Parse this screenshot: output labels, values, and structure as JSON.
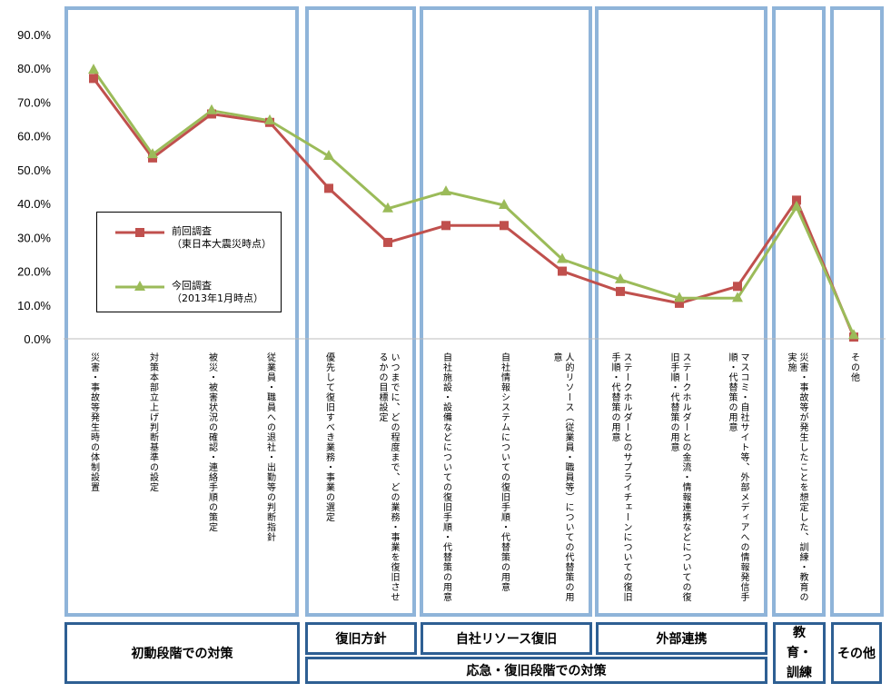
{
  "chart_data": {
    "type": "line",
    "ylim": [
      0,
      90
    ],
    "yticks": [
      "0.0%",
      "10.0%",
      "20.0%",
      "30.0%",
      "40.0%",
      "50.0%",
      "60.0%",
      "70.0%",
      "80.0%",
      "90.0%"
    ],
    "categories": [
      "災害・事故等発生時の体制設置",
      "対策本部立上げ判断基準の設定",
      "被災・被害状況の確認・連絡手順の策定",
      "従業員・職員への退社・出勤等の判断指針",
      "優先して復旧すべき業務・事業の選定",
      "いつまでに、どの程度まで、どの業務・事業を復旧させるかの目標設定",
      "自社施設・設備などについての復旧手順・代替策の用意",
      "自社情報システムについての復旧手順・代替策の用意",
      "人的リソース（従業員・職員等）についての代替策の用意",
      "ステークホルダーとのサプライチェーンについての復旧手順・代替策の用意",
      "ステークホルダーとの金流・情報連携などについての復旧手順・代替策の用意",
      "マスコミ・自社サイト等、外部メディアへの情報発信手順・代替策の用意",
      "災害・事故等が発生したことを想定した、訓練・教育の実施",
      "その他"
    ],
    "series": [
      {
        "name": "前回調査",
        "name_sub": "（東日本大震災時点）",
        "color": "#c0504d",
        "marker": "square",
        "values": [
          77,
          53.5,
          66.5,
          64,
          44.5,
          28.5,
          33.5,
          33.5,
          20,
          14,
          10.5,
          15.5,
          41,
          0.5
        ]
      },
      {
        "name": "今回調査",
        "name_sub": "（2013年1月時点）",
        "color": "#9bbb59",
        "marker": "triangle",
        "values": [
          79.5,
          54.5,
          67.5,
          64.5,
          54,
          38.5,
          43.5,
          39.5,
          23.5,
          17.5,
          12,
          12,
          39,
          1
        ]
      }
    ],
    "legend": "inside-left",
    "groups": [
      "初動段階での対策",
      "復旧方針",
      "自社リソース復旧",
      "外部連携",
      "教育・訓練",
      "その他"
    ],
    "supergroup": "応急・復旧段階での対策"
  }
}
